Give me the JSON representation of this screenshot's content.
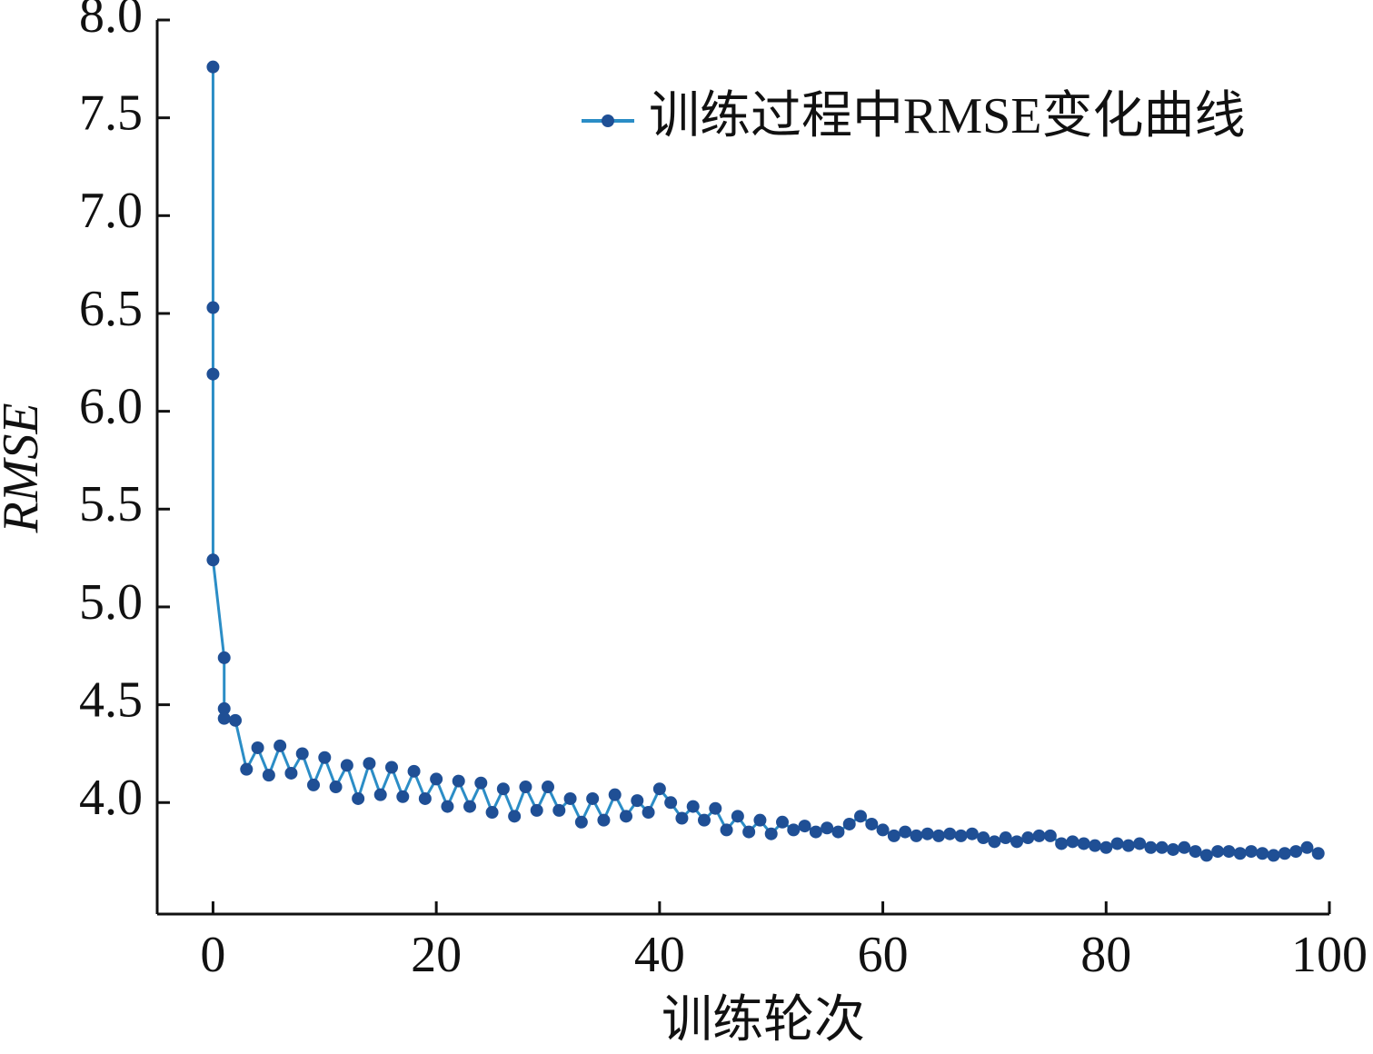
{
  "chart_data": {
    "type": "line",
    "xlabel": "训练轮次",
    "ylabel": "RMSE",
    "xlim": [
      -5,
      100
    ],
    "ylim": [
      3.43,
      8.0
    ],
    "xticks": [
      0,
      20,
      40,
      60,
      80,
      100
    ],
    "yticks": [
      {
        "value": 4.0,
        "label": "4.0"
      },
      4.5,
      {
        "value": 5.0,
        "label": "5.0"
      },
      5.5,
      {
        "value": 6.0,
        "label": "6.0"
      },
      6.5,
      {
        "value": 7.0,
        "label": "7.0"
      },
      7.5,
      {
        "value": 8.0,
        "label": "8.0"
      }
    ],
    "legend": "upper right",
    "x": [
      0,
      0,
      0,
      0,
      1,
      1,
      1,
      2,
      3,
      4,
      5,
      6,
      7,
      8,
      9,
      10,
      11,
      12,
      13,
      14,
      15,
      16,
      17,
      18,
      19,
      20,
      21,
      22,
      23,
      24,
      25,
      26,
      27,
      28,
      29,
      30,
      31,
      32,
      33,
      34,
      35,
      36,
      37,
      38,
      39,
      40,
      41,
      42,
      43,
      44,
      45,
      46,
      47,
      48,
      49,
      50,
      51,
      52,
      53,
      54,
      55,
      56,
      57,
      58,
      59,
      60,
      61,
      62,
      63,
      64,
      65,
      66,
      67,
      68,
      69,
      70,
      71,
      72,
      73,
      74,
      75,
      76,
      77,
      78,
      79,
      80,
      81,
      82,
      83,
      84,
      85,
      86,
      87,
      88,
      89,
      90,
      91,
      92,
      93,
      94,
      95,
      96,
      97,
      98,
      99
    ],
    "series": [
      {
        "name": "训练过程中RMSE变化曲线",
        "color": "#2b8dc6",
        "marker_color": "#1f4f95",
        "values": [
          7.76,
          6.53,
          6.19,
          5.24,
          4.74,
          4.48,
          4.43,
          4.42,
          4.17,
          4.28,
          4.14,
          4.29,
          4.15,
          4.25,
          4.09,
          4.23,
          4.08,
          4.19,
          4.02,
          4.2,
          4.04,
          4.18,
          4.03,
          4.16,
          4.02,
          4.12,
          3.98,
          4.11,
          3.98,
          4.1,
          3.95,
          4.07,
          3.93,
          4.08,
          3.96,
          4.08,
          3.96,
          4.02,
          3.9,
          4.02,
          3.91,
          4.04,
          3.93,
          4.01,
          3.95,
          4.07,
          4.0,
          3.92,
          3.98,
          3.91,
          3.97,
          3.86,
          3.93,
          3.85,
          3.91,
          3.84,
          3.9,
          3.86,
          3.88,
          3.85,
          3.87,
          3.85,
          3.89,
          3.93,
          3.89,
          3.86,
          3.83,
          3.85,
          3.83,
          3.84,
          3.83,
          3.84,
          3.83,
          3.84,
          3.82,
          3.8,
          3.82,
          3.8,
          3.82,
          3.83,
          3.83,
          3.79,
          3.8,
          3.79,
          3.78,
          3.77,
          3.79,
          3.78,
          3.79,
          3.77,
          3.77,
          3.76,
          3.77,
          3.75,
          3.73,
          3.75,
          3.75,
          3.74,
          3.75,
          3.74,
          3.73,
          3.74,
          3.75,
          3.77,
          3.74
        ]
      }
    ]
  }
}
